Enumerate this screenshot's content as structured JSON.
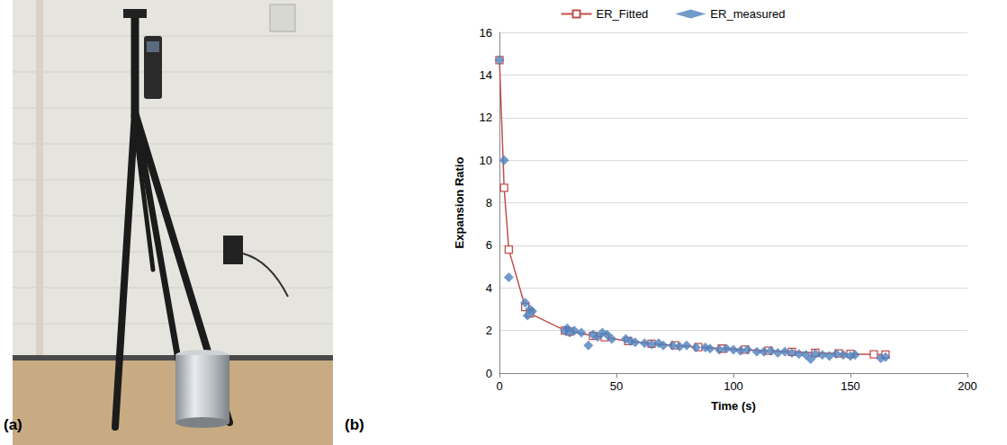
{
  "panel_labels": [
    "(a)",
    "(b)"
  ],
  "chart_data": {
    "type": "line",
    "x_label": "Time (s)",
    "y_label": "Expansion Ratio",
    "xlim": [
      0,
      200
    ],
    "xticks": [
      0,
      50,
      100,
      150,
      200
    ],
    "ylim": [
      0,
      16
    ],
    "yticks": [
      0,
      2,
      4,
      6,
      8,
      10,
      12,
      14,
      16
    ],
    "grid": "y",
    "legend": "top",
    "series": [
      {
        "name": "ER_Fitted",
        "type": "line",
        "color": "#c0504d",
        "marker": "square",
        "line_style": "solid",
        "x": [
          0,
          2,
          4,
          11,
          13,
          28,
          30,
          40,
          45,
          55,
          65,
          75,
          85,
          95,
          105,
          115,
          125,
          135,
          145,
          150,
          160,
          165
        ],
        "values": [
          14.7,
          8.7,
          5.8,
          3.1,
          2.8,
          2.0,
          1.95,
          1.75,
          1.68,
          1.5,
          1.38,
          1.3,
          1.22,
          1.15,
          1.1,
          1.05,
          1.0,
          0.95,
          0.92,
          0.9,
          0.88,
          0.87
        ]
      },
      {
        "name": "ER_measured",
        "type": "scatter",
        "color": "#4f81bd",
        "marker": "diamond",
        "x": [
          0,
          2,
          4,
          11,
          12,
          13,
          14,
          28,
          29,
          30,
          32,
          35,
          38,
          40,
          42,
          44,
          46,
          48,
          54,
          56,
          58,
          62,
          65,
          68,
          70,
          74,
          77,
          80,
          84,
          88,
          90,
          94,
          97,
          100,
          103,
          106,
          110,
          113,
          116,
          119,
          122,
          125,
          128,
          131,
          133,
          135,
          138,
          141,
          144,
          147,
          150,
          152,
          163,
          165
        ],
        "values": [
          14.7,
          10.0,
          4.5,
          3.3,
          2.7,
          3.0,
          2.9,
          2.0,
          2.1,
          1.9,
          2.0,
          1.9,
          1.3,
          1.8,
          1.7,
          1.9,
          1.8,
          1.6,
          1.6,
          1.5,
          1.45,
          1.4,
          1.35,
          1.4,
          1.3,
          1.3,
          1.25,
          1.3,
          1.2,
          1.2,
          1.15,
          1.1,
          1.15,
          1.1,
          1.05,
          1.1,
          1.0,
          1.0,
          1.05,
          0.95,
          1.0,
          0.95,
          0.9,
          0.85,
          0.65,
          0.9,
          0.85,
          0.8,
          0.9,
          0.85,
          0.8,
          0.85,
          0.7,
          0.75
        ]
      }
    ]
  }
}
